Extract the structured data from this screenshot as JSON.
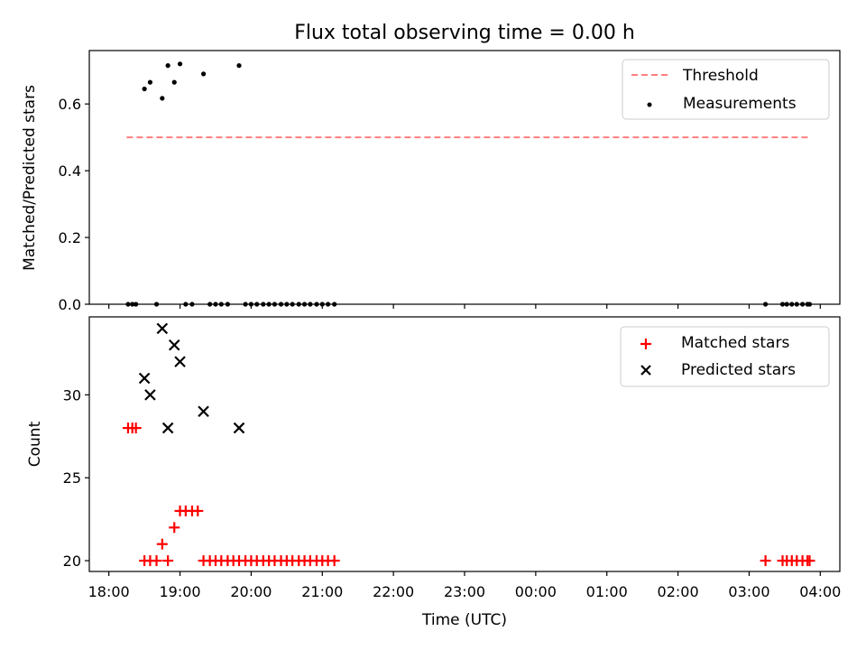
{
  "chart_data": {
    "title": "Flux total observing time = 0.00 h",
    "xlabel": "Time (UTC)",
    "x_ticks": [
      "18:00",
      "19:00",
      "20:00",
      "21:00",
      "22:00",
      "23:00",
      "00:00",
      "01:00",
      "02:00",
      "03:00",
      "04:00"
    ],
    "x_range_hours": [
      17.725,
      28.275
    ],
    "panels": [
      {
        "id": "top",
        "type": "scatter",
        "ylabel": "Matched/Predicted stars",
        "ylim": [
          0.0,
          0.76
        ],
        "y_ticks": [
          0.0,
          0.2,
          0.4,
          0.6
        ],
        "y_tick_labels": [
          "0.0",
          "0.2",
          "0.4",
          "0.6"
        ],
        "legend_position": "top-right",
        "series": [
          {
            "name": "Threshold",
            "kind": "line",
            "style": "dashed",
            "color": "#ff7f7f",
            "x": [
              18.25,
              27.85
            ],
            "y": [
              0.5,
              0.5
            ]
          },
          {
            "name": "Measurements",
            "kind": "dot",
            "color": "#000000",
            "x": [
              18.27,
              18.33,
              18.38,
              18.5,
              18.58,
              18.67,
              18.75,
              18.83,
              18.92,
              19.0,
              19.08,
              19.17,
              19.33,
              19.42,
              19.5,
              19.58,
              19.67,
              19.83,
              19.92,
              20.0,
              20.08,
              20.17,
              20.25,
              20.33,
              20.42,
              20.5,
              20.58,
              20.67,
              20.75,
              20.83,
              20.92,
              21.0,
              21.08,
              21.17,
              27.23,
              27.47,
              27.53,
              27.6,
              27.67,
              27.75,
              27.82,
              27.85
            ],
            "y": [
              0,
              0,
              0,
              0.645,
              0.665,
              0,
              0.617,
              0.715,
              0.665,
              0.72,
              0,
              0,
              0.69,
              0,
              0,
              0,
              0,
              0.715,
              0,
              0,
              0,
              0,
              0,
              0,
              0,
              0,
              0,
              0,
              0,
              0,
              0,
              0,
              0,
              0,
              0,
              0,
              0,
              0,
              0,
              0,
              0,
              0
            ]
          }
        ]
      },
      {
        "id": "bottom",
        "type": "scatter",
        "ylabel": "Count",
        "ylim": [
          19.35,
          34.7
        ],
        "y_ticks": [
          20,
          25,
          30
        ],
        "y_tick_labels": [
          "20",
          "25",
          "30"
        ],
        "legend_position": "top-right",
        "series": [
          {
            "name": "Matched stars",
            "kind": "plus",
            "color": "#ff0000",
            "x": [
              18.27,
              18.33,
              18.38,
              18.5,
              18.58,
              18.67,
              18.75,
              18.83,
              18.92,
              19.0,
              19.08,
              19.17,
              19.25,
              19.33,
              19.42,
              19.5,
              19.58,
              19.67,
              19.75,
              19.83,
              19.92,
              20.0,
              20.08,
              20.17,
              20.25,
              20.33,
              20.42,
              20.5,
              20.58,
              20.67,
              20.75,
              20.83,
              20.92,
              21.0,
              21.08,
              21.17,
              27.23,
              27.47,
              27.53,
              27.6,
              27.67,
              27.75,
              27.82,
              27.85
            ],
            "y": [
              28,
              28,
              28,
              20,
              20,
              20,
              21,
              20,
              22,
              23,
              23,
              23,
              23,
              20,
              20,
              20,
              20,
              20,
              20,
              20,
              20,
              20,
              20,
              20,
              20,
              20,
              20,
              20,
              20,
              20,
              20,
              20,
              20,
              20,
              20,
              20,
              20,
              20,
              20,
              20,
              20,
              20,
              20,
              20
            ]
          },
          {
            "name": "Predicted stars",
            "kind": "x",
            "color": "#000000",
            "x": [
              18.5,
              18.58,
              18.75,
              18.83,
              18.92,
              19.0,
              19.33,
              19.83
            ],
            "y": [
              31,
              30,
              34,
              28,
              33,
              32,
              29,
              28
            ]
          }
        ]
      }
    ]
  }
}
